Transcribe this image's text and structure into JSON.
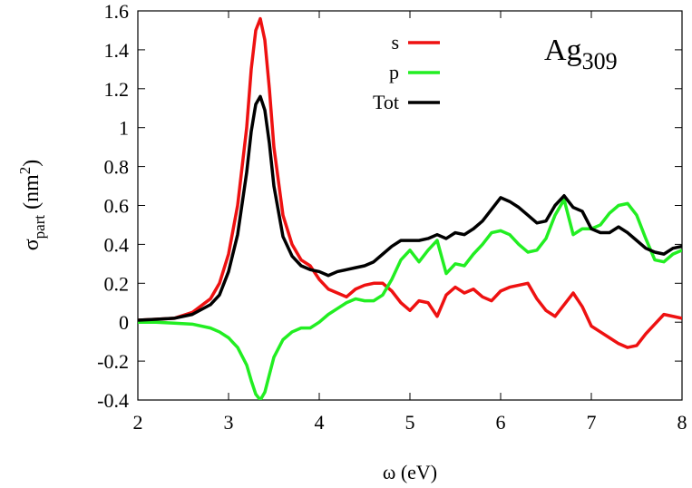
{
  "chart_data": {
    "type": "line",
    "xlabel_parts": [
      "ω (eV)"
    ],
    "ylabel_parts": [
      "σ",
      "part",
      " (nm",
      "2",
      ")"
    ],
    "annotation_parts": [
      "Ag",
      "309"
    ],
    "x": [
      2.0,
      2.2,
      2.4,
      2.6,
      2.8,
      2.9,
      3.0,
      3.1,
      3.2,
      3.25,
      3.3,
      3.35,
      3.4,
      3.45,
      3.5,
      3.6,
      3.7,
      3.8,
      3.9,
      4.0,
      4.1,
      4.2,
      4.3,
      4.4,
      4.5,
      4.6,
      4.7,
      4.8,
      4.9,
      5.0,
      5.1,
      5.2,
      5.3,
      5.4,
      5.5,
      5.6,
      5.7,
      5.8,
      5.9,
      6.0,
      6.1,
      6.2,
      6.3,
      6.4,
      6.5,
      6.6,
      6.7,
      6.8,
      6.9,
      7.0,
      7.1,
      7.2,
      7.3,
      7.4,
      7.5,
      7.6,
      7.7,
      7.8,
      7.9,
      8.0
    ],
    "series": [
      {
        "name": "s",
        "color": "#ee1111",
        "values": [
          0.01,
          0.015,
          0.02,
          0.05,
          0.12,
          0.2,
          0.35,
          0.6,
          1.0,
          1.3,
          1.5,
          1.56,
          1.45,
          1.2,
          0.9,
          0.55,
          0.4,
          0.32,
          0.29,
          0.22,
          0.17,
          0.15,
          0.13,
          0.17,
          0.19,
          0.2,
          0.2,
          0.16,
          0.1,
          0.06,
          0.11,
          0.1,
          0.03,
          0.14,
          0.18,
          0.15,
          0.17,
          0.13,
          0.11,
          0.16,
          0.18,
          0.19,
          0.2,
          0.12,
          0.06,
          0.03,
          0.09,
          0.15,
          0.08,
          -0.02,
          -0.05,
          -0.08,
          -0.11,
          -0.13,
          -0.12,
          -0.06,
          -0.01,
          0.04,
          0.03,
          0.02
        ]
      },
      {
        "name": "p",
        "color": "#22ee22",
        "values": [
          0,
          0,
          -0.005,
          -0.01,
          -0.03,
          -0.05,
          -0.08,
          -0.13,
          -0.22,
          -0.3,
          -0.37,
          -0.4,
          -0.36,
          -0.27,
          -0.18,
          -0.09,
          -0.05,
          -0.03,
          -0.03,
          0.0,
          0.04,
          0.07,
          0.1,
          0.12,
          0.11,
          0.11,
          0.14,
          0.22,
          0.32,
          0.37,
          0.31,
          0.37,
          0.42,
          0.25,
          0.3,
          0.29,
          0.35,
          0.4,
          0.46,
          0.47,
          0.45,
          0.4,
          0.36,
          0.37,
          0.43,
          0.55,
          0.63,
          0.45,
          0.48,
          0.48,
          0.5,
          0.56,
          0.6,
          0.61,
          0.55,
          0.43,
          0.32,
          0.31,
          0.35,
          0.37
        ]
      },
      {
        "name": "Tot",
        "color": "#000000",
        "values": [
          0.01,
          0.015,
          0.02,
          0.04,
          0.09,
          0.14,
          0.26,
          0.45,
          0.77,
          0.98,
          1.12,
          1.16,
          1.09,
          0.92,
          0.7,
          0.44,
          0.34,
          0.29,
          0.27,
          0.26,
          0.24,
          0.26,
          0.27,
          0.28,
          0.29,
          0.31,
          0.35,
          0.39,
          0.42,
          0.42,
          0.42,
          0.43,
          0.45,
          0.43,
          0.46,
          0.45,
          0.48,
          0.52,
          0.58,
          0.64,
          0.62,
          0.59,
          0.55,
          0.51,
          0.52,
          0.6,
          0.65,
          0.59,
          0.57,
          0.48,
          0.46,
          0.46,
          0.49,
          0.46,
          0.42,
          0.38,
          0.36,
          0.35,
          0.38,
          0.39
        ]
      }
    ],
    "xlim": [
      2,
      8
    ],
    "xticks": [
      2,
      3,
      4,
      5,
      6,
      7,
      8
    ],
    "ylim": [
      -0.4,
      1.6
    ],
    "yticks": [
      -0.4,
      -0.2,
      0,
      0.2,
      0.4,
      0.6,
      0.8,
      1,
      1.2,
      1.4,
      1.6
    ],
    "legend": "top-right"
  }
}
